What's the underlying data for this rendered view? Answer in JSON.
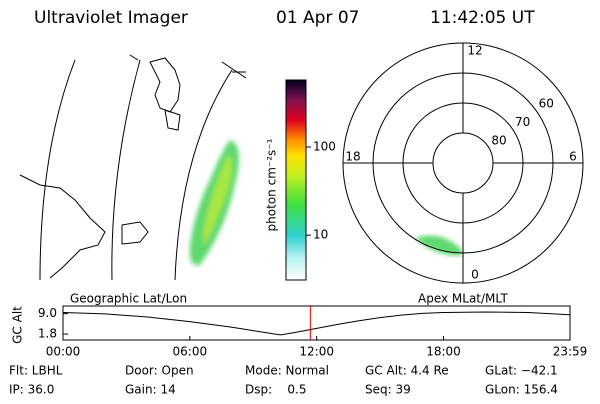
{
  "header": {
    "instrument": "Ultraviolet Imager",
    "date": "01 Apr 07",
    "time": "11:42:05 UT"
  },
  "colorbar": {
    "label": "photon cm⁻²s⁻¹",
    "log_scale": true,
    "ylim": [
      3.1,
      575
    ],
    "ticks": [
      {
        "value": 100,
        "label": "100"
      },
      {
        "value": 10,
        "label": "10"
      }
    ]
  },
  "polar": {
    "rlim": [
      90,
      50
    ],
    "latitudes": [
      80,
      70,
      60
    ],
    "mlt": [
      12,
      18,
      6,
      0
    ]
  },
  "altitude_plot": {
    "ylabel": "GC Alt",
    "left_label": "Geographic Lat/Lon",
    "right_label": "Apex MLat/MLT",
    "ylim": [
      -0.3,
      11.7
    ],
    "yticks": [
      {
        "value": 9.0,
        "label": "9.0"
      },
      {
        "value": 1.8,
        "label": "1.8"
      }
    ],
    "xlim": [
      0,
      23.983
    ],
    "xticks": [
      {
        "value": 0,
        "label": "00:00"
      },
      {
        "value": 6,
        "label": "06:00"
      },
      {
        "value": 12,
        "label": "12:00"
      },
      {
        "value": 18,
        "label": "18:00"
      },
      {
        "value": 23.983,
        "label": "23:59"
      }
    ],
    "x": [
      0,
      2,
      4,
      6,
      8,
      9,
      10,
      10.3,
      11,
      12,
      13,
      14,
      15,
      16,
      17,
      18,
      20,
      22,
      23.983
    ],
    "values": [
      9.4,
      8.9,
      7.8,
      6.2,
      4.2,
      3.0,
      1.8,
      1.5,
      2.4,
      3.8,
      5.2,
      6.5,
      7.6,
      8.5,
      9.1,
      9.4,
      9.6,
      9.4,
      8.6
    ],
    "marker": 11.701,
    "marker_color": "#e00000"
  },
  "info": [
    [
      "Flt: LBHL",
      "Door: Open",
      "Mode: Normal",
      "GC Alt: 4.4 Re",
      "GLat: −42.1"
    ],
    [
      "IP: 36.0",
      "Gain: 14",
      "Dsp:    0.5",
      "Seq: 39",
      "GLon: 156.4"
    ]
  ]
}
